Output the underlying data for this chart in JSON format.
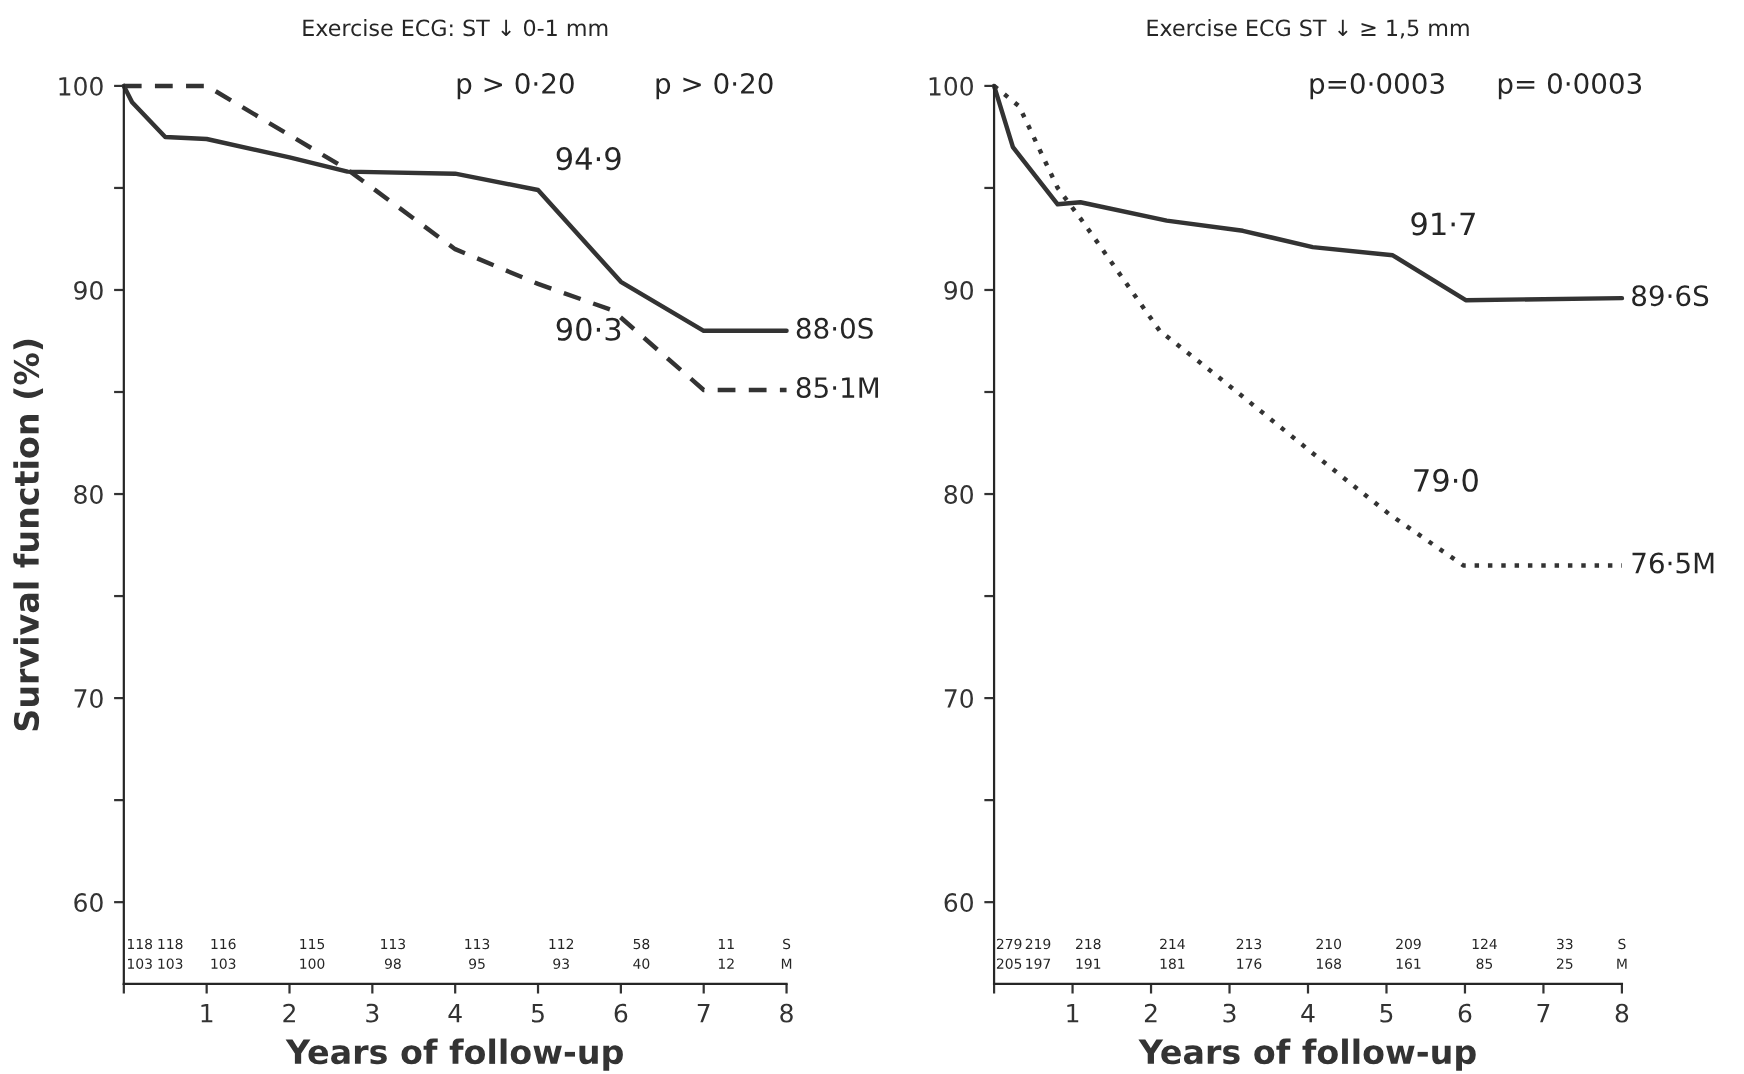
{
  "chart_data": [
    {
      "type": "line",
      "title": "Exercise ECG: ST ↓ 0-1 mm",
      "xlabel": "Years of follow-up",
      "ylabel": "Survival function (%)",
      "xlim": [
        0,
        8
      ],
      "xticks": [
        {
          "value": 0,
          "label": null
        },
        1,
        2,
        3,
        4,
        5,
        6,
        7,
        8
      ],
      "ylim": [
        56,
        100
      ],
      "yticks": [
        60,
        {
          "value": 65,
          "label": null
        },
        70,
        {
          "value": 75,
          "label": null
        },
        80,
        {
          "value": 85,
          "label": null
        },
        90,
        {
          "value": 95,
          "label": null
        },
        100
      ],
      "grid": false,
      "legend": false,
      "series": [
        {
          "color": "#333333",
          "line_style": "solid",
          "x": [
            0,
            0.1,
            0.5,
            1,
            2,
            2.7,
            4,
            5,
            6,
            7,
            8
          ],
          "values": [
            100,
            99.2,
            97.5,
            97.4,
            96.5,
            95.8,
            95.7,
            94.9,
            90.4,
            88.0,
            88.0
          ]
        },
        {
          "color": "#333333",
          "line_style": "dashed",
          "x": [
            0,
            1,
            2.7,
            4,
            5,
            5.9,
            7,
            8
          ],
          "values": [
            100,
            100,
            95.9,
            92.0,
            90.3,
            89.0,
            85.1,
            85.1
          ]
        }
      ],
      "annotations": [
        "p > 0·20",
        "p > 0·20",
        {
          "text": "94·9",
          "x": 5,
          "y": 94.9
        },
        {
          "text": "90·3",
          "x": 5,
          "y": 90.3
        },
        {
          "text": "88·0S",
          "x": 8,
          "y": 88.0
        },
        {
          "text": "85·1M",
          "x": 8,
          "y": 85.1
        },
        "118",
        "118",
        "116",
        "115",
        "113",
        "113",
        "112",
        "58",
        "11",
        "S",
        "103",
        "103",
        "103",
        "100",
        "98",
        "95",
        "93",
        "40",
        "12",
        "M"
      ]
    },
    {
      "type": "line",
      "title": "Exercise ECG ST ↓ ≥ 1,5 mm",
      "xlabel": "Years of follow-up",
      "xlim": [
        0,
        8
      ],
      "xticks": [
        {
          "value": 0,
          "label": null
        },
        1,
        2,
        3,
        4,
        5,
        6,
        7,
        8
      ],
      "ylim": [
        56,
        100
      ],
      "yticks": [
        60,
        {
          "value": 65,
          "label": null
        },
        70,
        {
          "value": 75,
          "label": null
        },
        80,
        {
          "value": 85,
          "label": null
        },
        90,
        {
          "value": 95,
          "label": null
        },
        100
      ],
      "grid": false,
      "legend": false,
      "series": [
        {
          "color": "#333333",
          "line_style": "solid",
          "x": [
            0,
            0.24,
            0.81,
            1.1,
            2.2,
            3.17,
            4.06,
            5.08,
            6.01,
            8
          ],
          "values": [
            100,
            97.0,
            94.2,
            94.3,
            93.4,
            92.9,
            92.1,
            91.7,
            89.5,
            89.6
          ]
        },
        {
          "color": "#333333",
          "line_style": "dotted",
          "x": [
            0,
            0.32,
            0.81,
            1.14,
            2.11,
            3.0,
            4.06,
            5.04,
            5.98,
            8
          ],
          "values": [
            100,
            99.0,
            95.0,
            93.3,
            88.0,
            85.3,
            82.0,
            79.0,
            76.5,
            76.5
          ]
        }
      ],
      "annotations": [
        "p=0·0003",
        "p= 0·0003",
        {
          "text": "91·7",
          "x": 5.08,
          "y": 91.7
        },
        {
          "text": "79·0",
          "x": 5.04,
          "y": 79.0
        },
        {
          "text": "89·6S",
          "x": 8,
          "y": 89.6
        },
        {
          "text": "76·5M",
          "x": 8,
          "y": 76.5
        },
        "279",
        "219",
        "218",
        "214",
        "213",
        "210",
        "209",
        "124",
        "33",
        "S",
        "205",
        "197",
        "191",
        "181",
        "176",
        "168",
        "161",
        "85",
        "25",
        "M"
      ]
    }
  ]
}
